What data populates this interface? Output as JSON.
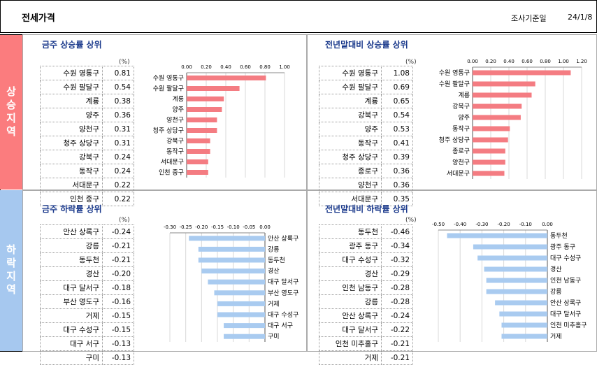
{
  "header": {
    "title": "전세가격",
    "date_label": "조사기준일",
    "date_value": "24/1/8"
  },
  "sections": {
    "rise_label": "상승지역",
    "fall_label": "하락지역"
  },
  "colors": {
    "rise_side": "#fb7c7e",
    "fall_side": "#a6c8ef",
    "rise_bar": "#f47c82",
    "fall_bar": "#a9cbf0"
  },
  "panels": [
    {
      "title": "금주 상승률 상위",
      "unit": "(%)",
      "rows": [
        {
          "name": "수원 영통구",
          "value": "0.81"
        },
        {
          "name": "수원 팔달구",
          "value": "0.54"
        },
        {
          "name": "계룡",
          "value": "0.38"
        },
        {
          "name": "양주",
          "value": "0.36"
        },
        {
          "name": "양천구",
          "value": "0.31"
        },
        {
          "name": "청주 상당구",
          "value": "0.31"
        },
        {
          "name": "강북구",
          "value": "0.24"
        },
        {
          "name": "동작구",
          "value": "0.24"
        },
        {
          "name": "서대문구",
          "value": "0.22"
        },
        {
          "name": "인천 중구",
          "value": "0.22"
        }
      ],
      "chart_data": {
        "type": "bar",
        "orientation": "horizontal",
        "title": "",
        "xlabel": "",
        "ylabel": "",
        "categories": [
          "수원 영통구",
          "수원 팔달구",
          "계룡",
          "양주",
          "양천구",
          "청주 상당구",
          "강북구",
          "동작구",
          "서대문구",
          "인천 중구"
        ],
        "values": [
          0.81,
          0.54,
          0.38,
          0.36,
          0.31,
          0.31,
          0.24,
          0.24,
          0.22,
          0.22
        ],
        "xlim": [
          0,
          1.0
        ],
        "ticks": [
          "0.00",
          "0.20",
          "0.40",
          "0.60",
          "0.80",
          "1.00"
        ],
        "grid": true,
        "labels_side": "left",
        "axis_position": "top"
      }
    },
    {
      "title": "전년말대비 상승률 상위",
      "unit": "(%)",
      "rows": [
        {
          "name": "수원 영통구",
          "value": "1.08"
        },
        {
          "name": "수원 팔달구",
          "value": "0.69"
        },
        {
          "name": "계룡",
          "value": "0.65"
        },
        {
          "name": "강북구",
          "value": "0.54"
        },
        {
          "name": "양주",
          "value": "0.53"
        },
        {
          "name": "동작구",
          "value": "0.41"
        },
        {
          "name": "청주 상당구",
          "value": "0.39"
        },
        {
          "name": "종로구",
          "value": "0.36"
        },
        {
          "name": "양천구",
          "value": "0.36"
        },
        {
          "name": "서대문구",
          "value": "0.35"
        }
      ],
      "chart_data": {
        "type": "bar",
        "orientation": "horizontal",
        "title": "",
        "xlabel": "",
        "ylabel": "",
        "categories": [
          "수원 영통구",
          "수원 팔달구",
          "계룡",
          "강북구",
          "양주",
          "동작구",
          "청주 상당구",
          "종로구",
          "양천구",
          "서대문구"
        ],
        "values": [
          1.08,
          0.69,
          0.65,
          0.54,
          0.53,
          0.41,
          0.39,
          0.36,
          0.36,
          0.35
        ],
        "xlim": [
          0,
          1.2
        ],
        "ticks": [
          "0.00",
          "0.20",
          "0.40",
          "0.60",
          "0.80",
          "1.00",
          "1.20"
        ],
        "grid": true,
        "labels_side": "left",
        "axis_position": "top"
      }
    },
    {
      "title": "금주 하락률 상위",
      "unit": "(%)",
      "rows": [
        {
          "name": "안산 상록구",
          "value": "-0.24"
        },
        {
          "name": "강릉",
          "value": "-0.21"
        },
        {
          "name": "동두천",
          "value": "-0.21"
        },
        {
          "name": "경산",
          "value": "-0.20"
        },
        {
          "name": "대구 달서구",
          "value": "-0.18"
        },
        {
          "name": "부산 영도구",
          "value": "-0.16"
        },
        {
          "name": "거제",
          "value": "-0.15"
        },
        {
          "name": "대구 수성구",
          "value": "-0.15"
        },
        {
          "name": "대구 서구",
          "value": "-0.13"
        },
        {
          "name": "구미",
          "value": "-0.13"
        }
      ],
      "chart_data": {
        "type": "bar",
        "orientation": "horizontal",
        "title": "",
        "xlabel": "",
        "ylabel": "",
        "categories": [
          "안산 상록구",
          "강릉",
          "동두천",
          "경산",
          "대구 달서구",
          "부산 영도구",
          "거제",
          "대구 수성구",
          "대구 서구",
          "구미"
        ],
        "values": [
          -0.24,
          -0.21,
          -0.21,
          -0.2,
          -0.18,
          -0.16,
          -0.15,
          -0.15,
          -0.13,
          -0.13
        ],
        "xlim": [
          -0.3,
          0.0
        ],
        "ticks": [
          "-0.30",
          "-0.25",
          "-0.20",
          "-0.15",
          "-0.10",
          "-0.05",
          "0.00"
        ],
        "grid": true,
        "labels_side": "right",
        "axis_position": "top"
      }
    },
    {
      "title": "전년말대비 하락률 상위",
      "unit": "(%)",
      "rows": [
        {
          "name": "동두천",
          "value": "-0.46"
        },
        {
          "name": "광주 동구",
          "value": "-0.34"
        },
        {
          "name": "대구 수성구",
          "value": "-0.32"
        },
        {
          "name": "경산",
          "value": "-0.29"
        },
        {
          "name": "인천 남동구",
          "value": "-0.28"
        },
        {
          "name": "강릉",
          "value": "-0.28"
        },
        {
          "name": "안산 상록구",
          "value": "-0.24"
        },
        {
          "name": "대구 달서구",
          "value": "-0.22"
        },
        {
          "name": "인천 미추홀구",
          "value": "-0.21"
        },
        {
          "name": "거제",
          "value": "-0.21"
        }
      ],
      "chart_data": {
        "type": "bar",
        "orientation": "horizontal",
        "title": "",
        "xlabel": "",
        "ylabel": "",
        "categories": [
          "동두천",
          "광주 동구",
          "대구 수성구",
          "경산",
          "인천 남동구",
          "강릉",
          "안산 상록구",
          "대구 달서구",
          "인천 미추홀구",
          "거제"
        ],
        "values": [
          -0.46,
          -0.34,
          -0.32,
          -0.29,
          -0.28,
          -0.28,
          -0.24,
          -0.22,
          -0.21,
          -0.21
        ],
        "xlim": [
          -0.5,
          0.0
        ],
        "ticks": [
          "-0.50",
          "-0.40",
          "-0.30",
          "-0.20",
          "-0.10",
          "0.00"
        ],
        "grid": true,
        "labels_side": "right",
        "axis_position": "top"
      }
    }
  ]
}
